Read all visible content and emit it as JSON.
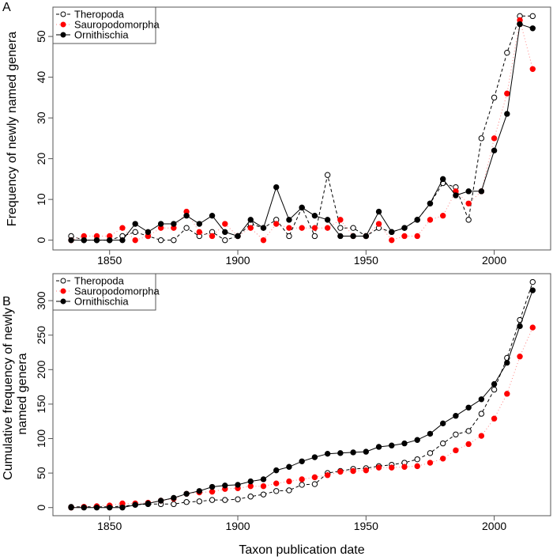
{
  "chart_data": [
    {
      "panel": "A",
      "type": "line",
      "xlabel": "",
      "ylabel": "Frequency of newly named genera",
      "x": [
        1835,
        1840,
        1845,
        1850,
        1855,
        1860,
        1865,
        1870,
        1875,
        1880,
        1885,
        1890,
        1895,
        1900,
        1905,
        1910,
        1915,
        1920,
        1925,
        1930,
        1935,
        1940,
        1945,
        1950,
        1955,
        1960,
        1965,
        1970,
        1975,
        1980,
        1985,
        1990,
        1995,
        2000,
        2005,
        2010,
        2015
      ],
      "xticks": [
        1850,
        1900,
        1950,
        2000
      ],
      "yticks": [
        0,
        10,
        20,
        30,
        40,
        50
      ],
      "legend_position": "top-left",
      "series": [
        {
          "name": "Theropoda",
          "color": "#000000",
          "marker": "open-circle",
          "line": "dashed",
          "values": [
            1,
            0,
            0,
            0,
            1,
            2,
            1,
            0,
            0,
            3,
            1,
            2,
            0,
            1,
            4,
            3,
            5,
            1,
            8,
            1,
            16,
            3,
            3,
            1,
            3,
            2,
            3,
            5,
            9,
            14,
            13,
            5,
            25,
            35,
            46,
            55,
            55
          ]
        },
        {
          "name": "Sauropodomorpha",
          "color": "#ff0000",
          "marker": "filled-circle",
          "line": "dotted",
          "values": [
            0,
            1,
            1,
            1,
            3,
            0,
            1,
            3,
            3,
            7,
            2,
            1,
            4,
            1,
            3,
            0,
            4,
            3,
            3,
            3,
            3,
            5,
            1,
            1,
            4,
            0,
            1,
            1,
            5,
            6,
            12,
            9,
            12,
            25,
            36,
            54,
            42
          ]
        },
        {
          "name": "Ornithischia",
          "color": "#000000",
          "marker": "filled-circle",
          "line": "solid",
          "values": [
            0,
            0,
            0,
            0,
            0,
            4,
            2,
            4,
            4,
            6,
            4,
            6,
            2,
            1,
            5,
            3,
            13,
            5,
            8,
            6,
            5,
            1,
            1,
            1,
            7,
            2,
            3,
            5,
            9,
            15,
            11,
            12,
            12,
            22,
            31,
            53,
            52
          ]
        }
      ]
    },
    {
      "panel": "B",
      "type": "line",
      "xlabel": "Taxon publication date",
      "ylabel": [
        "Cumulative frequency of newly",
        "named genera"
      ],
      "x": [
        1835,
        1840,
        1845,
        1850,
        1855,
        1860,
        1865,
        1870,
        1875,
        1880,
        1885,
        1890,
        1895,
        1900,
        1905,
        1910,
        1915,
        1920,
        1925,
        1930,
        1935,
        1940,
        1945,
        1950,
        1955,
        1960,
        1965,
        1970,
        1975,
        1980,
        1985,
        1990,
        1995,
        2000,
        2005,
        2010,
        2015
      ],
      "xticks": [
        1850,
        1900,
        1950,
        2000
      ],
      "yticks": [
        0,
        50,
        100,
        150,
        200,
        250,
        300
      ],
      "legend_position": "top-left",
      "series": [
        {
          "name": "Theropoda",
          "color": "#000000",
          "marker": "open-circle",
          "line": "dashed",
          "values": [
            1,
            1,
            1,
            1,
            2,
            4,
            5,
            5,
            5,
            8,
            9,
            11,
            11,
            12,
            16,
            19,
            24,
            25,
            33,
            34,
            50,
            53,
            56,
            57,
            60,
            62,
            65,
            70,
            79,
            93,
            106,
            111,
            136,
            171,
            217,
            272,
            327
          ]
        },
        {
          "name": "Sauropodomorpha",
          "color": "#ff0000",
          "marker": "filled-circle",
          "line": "dotted",
          "values": [
            0,
            1,
            2,
            3,
            6,
            6,
            7,
            10,
            13,
            20,
            22,
            23,
            27,
            28,
            31,
            31,
            35,
            38,
            41,
            44,
            47,
            52,
            53,
            54,
            58,
            58,
            59,
            60,
            65,
            71,
            83,
            92,
            104,
            129,
            165,
            219,
            261
          ]
        },
        {
          "name": "Ornithischia",
          "color": "#000000",
          "marker": "filled-circle",
          "line": "solid",
          "values": [
            0,
            0,
            0,
            0,
            0,
            4,
            6,
            10,
            14,
            20,
            24,
            30,
            32,
            33,
            38,
            41,
            54,
            59,
            67,
            73,
            78,
            79,
            80,
            81,
            88,
            90,
            93,
            98,
            107,
            122,
            133,
            145,
            157,
            179,
            210,
            263,
            315
          ]
        }
      ]
    }
  ]
}
